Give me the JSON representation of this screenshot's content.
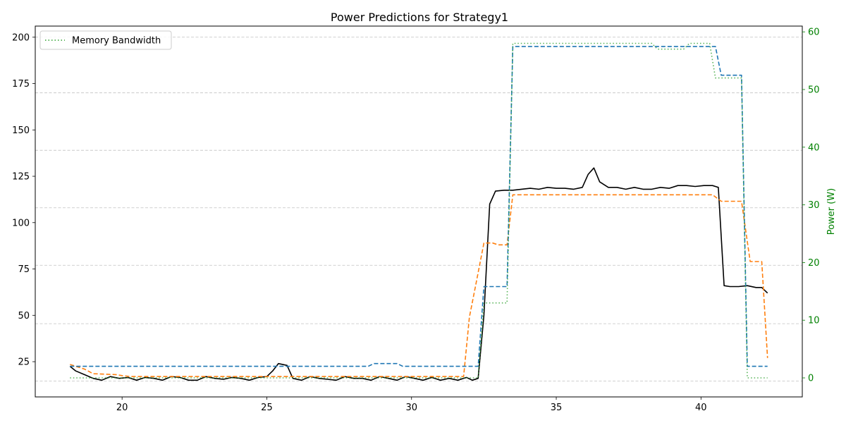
{
  "chart_data": {
    "type": "line",
    "title": "Power Predictions for Strategy1",
    "xlabel": "",
    "ylabel_left": "",
    "ylabel_right": "Power (W)",
    "xlim": [
      17.0,
      43.5
    ],
    "ylim_left": [
      6.0,
      206.0
    ],
    "ylim_right": [
      -3.3,
      61.0
    ],
    "x_ticks": [
      20,
      25,
      30,
      35,
      40
    ],
    "y_ticks_left": [
      25,
      50,
      75,
      100,
      125,
      150,
      175,
      200
    ],
    "y_ticks_right": [
      0,
      10,
      20,
      30,
      40,
      50,
      60
    ],
    "right_gridlines": [
      14.5,
      45.5,
      77,
      108,
      139,
      170,
      200
    ],
    "right_axis_color": "#008000",
    "grid": true,
    "legend": {
      "placement": "top-left",
      "entries": [
        "Memory Bandwidth"
      ]
    },
    "series": [
      {
        "color": "#000000",
        "style": "solid",
        "axis": "left",
        "points": [
          [
            18.2,
            22.5
          ],
          [
            18.4,
            20
          ],
          [
            18.7,
            18
          ],
          [
            19.0,
            16
          ],
          [
            19.3,
            15
          ],
          [
            19.6,
            17
          ],
          [
            19.9,
            16
          ],
          [
            20.2,
            16.5
          ],
          [
            20.5,
            15
          ],
          [
            20.8,
            16.5
          ],
          [
            21.1,
            16
          ],
          [
            21.4,
            15
          ],
          [
            21.7,
            17
          ],
          [
            22.0,
            16.5
          ],
          [
            22.3,
            15
          ],
          [
            22.6,
            15
          ],
          [
            22.9,
            17
          ],
          [
            23.2,
            16
          ],
          [
            23.5,
            15.5
          ],
          [
            23.8,
            16.5
          ],
          [
            24.1,
            16
          ],
          [
            24.4,
            15
          ],
          [
            24.7,
            16.5
          ],
          [
            25.0,
            17
          ],
          [
            25.2,
            20
          ],
          [
            25.4,
            24
          ],
          [
            25.7,
            23
          ],
          [
            25.9,
            16
          ],
          [
            26.2,
            15
          ],
          [
            26.5,
            17
          ],
          [
            26.8,
            16
          ],
          [
            27.1,
            15.5
          ],
          [
            27.4,
            15
          ],
          [
            27.7,
            17
          ],
          [
            28.0,
            16
          ],
          [
            28.3,
            16
          ],
          [
            28.6,
            15
          ],
          [
            28.9,
            17
          ],
          [
            29.2,
            16
          ],
          [
            29.5,
            15
          ],
          [
            29.8,
            17
          ],
          [
            30.1,
            16
          ],
          [
            30.4,
            15
          ],
          [
            30.7,
            16.5
          ],
          [
            31.0,
            15
          ],
          [
            31.3,
            16
          ],
          [
            31.6,
            15
          ],
          [
            31.9,
            16.5
          ],
          [
            32.1,
            15
          ],
          [
            32.3,
            16
          ],
          [
            32.5,
            50
          ],
          [
            32.7,
            110
          ],
          [
            32.9,
            117
          ],
          [
            33.2,
            117.5
          ],
          [
            33.5,
            117.5
          ],
          [
            33.8,
            118
          ],
          [
            34.1,
            118.5
          ],
          [
            34.4,
            118
          ],
          [
            34.7,
            119
          ],
          [
            35.0,
            118.5
          ],
          [
            35.3,
            118.5
          ],
          [
            35.6,
            118
          ],
          [
            35.9,
            119
          ],
          [
            36.1,
            126
          ],
          [
            36.3,
            129.5
          ],
          [
            36.5,
            122
          ],
          [
            36.8,
            119
          ],
          [
            37.1,
            119
          ],
          [
            37.4,
            118
          ],
          [
            37.7,
            119
          ],
          [
            38.0,
            118
          ],
          [
            38.3,
            118
          ],
          [
            38.6,
            119
          ],
          [
            38.9,
            118.5
          ],
          [
            39.2,
            120
          ],
          [
            39.5,
            120
          ],
          [
            39.8,
            119.5
          ],
          [
            40.1,
            120
          ],
          [
            40.4,
            120
          ],
          [
            40.6,
            119
          ],
          [
            40.8,
            66
          ],
          [
            41.0,
            65.5
          ],
          [
            41.3,
            65.5
          ],
          [
            41.6,
            66
          ],
          [
            41.9,
            65
          ],
          [
            42.1,
            65
          ],
          [
            42.3,
            62
          ]
        ]
      },
      {
        "color": "#ff7f0e",
        "style": "dashed",
        "axis": "left",
        "points": [
          [
            18.2,
            23.5
          ],
          [
            18.7,
            21
          ],
          [
            19.0,
            18.5
          ],
          [
            19.8,
            18
          ],
          [
            20.0,
            17.5
          ],
          [
            20.3,
            17
          ],
          [
            31.8,
            17
          ],
          [
            32.0,
            49
          ],
          [
            32.2,
            65
          ],
          [
            32.5,
            89
          ],
          [
            32.8,
            89
          ],
          [
            33.0,
            88
          ],
          [
            33.3,
            88
          ],
          [
            33.5,
            115
          ],
          [
            40.4,
            115
          ],
          [
            40.7,
            111.5
          ],
          [
            41.4,
            111.5
          ],
          [
            41.7,
            79
          ],
          [
            42.1,
            79
          ],
          [
            42.3,
            27
          ]
        ]
      },
      {
        "color": "#1f77b4",
        "style": "dashed",
        "axis": "left",
        "points": [
          [
            18.2,
            22.5
          ],
          [
            28.5,
            22.5
          ],
          [
            28.7,
            24
          ],
          [
            29.5,
            24
          ],
          [
            29.7,
            22.5
          ],
          [
            32.3,
            22.5
          ],
          [
            32.5,
            65.5
          ],
          [
            33.3,
            65.5
          ],
          [
            33.5,
            195
          ],
          [
            40.5,
            195
          ],
          [
            40.7,
            179.5
          ],
          [
            41.4,
            179.5
          ],
          [
            41.6,
            22.5
          ],
          [
            42.3,
            22.5
          ]
        ]
      },
      {
        "name": "Memory Bandwidth",
        "color": "#2ca02c",
        "style": "dotted",
        "axis": "right",
        "points": [
          [
            18.2,
            0
          ],
          [
            32.3,
            0
          ],
          [
            32.5,
            13
          ],
          [
            33.3,
            13
          ],
          [
            33.5,
            58
          ],
          [
            38.3,
            58
          ],
          [
            38.5,
            57
          ],
          [
            39.4,
            57
          ],
          [
            39.6,
            58
          ],
          [
            40.3,
            58
          ],
          [
            40.5,
            52
          ],
          [
            41.4,
            52
          ],
          [
            41.6,
            0
          ],
          [
            42.3,
            0
          ]
        ]
      }
    ]
  }
}
